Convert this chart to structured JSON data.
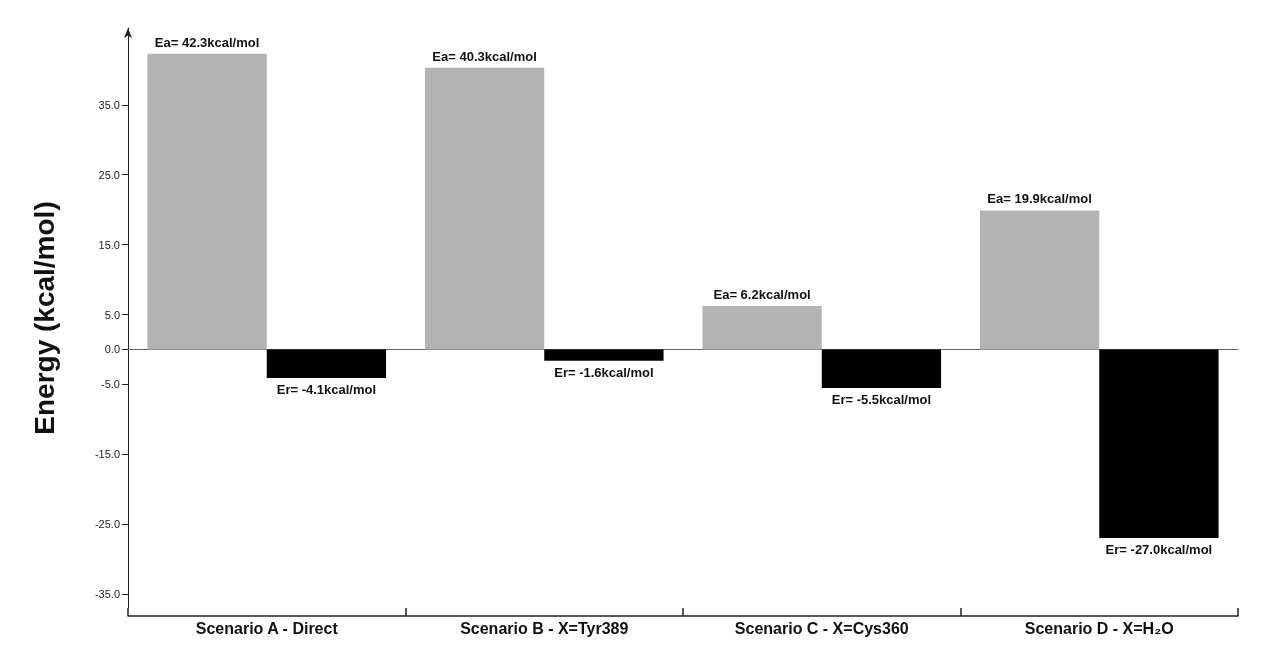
{
  "chart_data": {
    "type": "bar",
    "ylabel": "Energy (kcal/mol)",
    "categories": [
      "Scenario A - Direct",
      "Scenario B - X=Tyr389",
      "Scenario C - X=Cys360",
      "Scenario D - X=H₂O"
    ],
    "series": [
      {
        "color": "#b3b3b3",
        "values": [
          42.3,
          40.3,
          6.2,
          19.9
        ],
        "value_labels": [
          "Ea= 42.3kcal/mol",
          "Ea= 40.3kcal/mol",
          "Ea= 6.2kcal/mol",
          "Ea= 19.9kcal/mol"
        ]
      },
      {
        "color": "#000000",
        "values": [
          -4.1,
          -1.6,
          -5.5,
          -27.0
        ],
        "value_labels": [
          "Er= -4.1kcal/mol",
          "Er= -1.6kcal/mol",
          "Er= -5.5kcal/mol",
          "Er= -27.0kcal/mol"
        ]
      }
    ],
    "ylim": [
      -37,
      46
    ],
    "yticks": [
      {
        "value": 35,
        "label": "35.0"
      },
      {
        "value": 25,
        "label": "25.0"
      },
      {
        "value": 15,
        "label": "15.0"
      },
      {
        "value": 5,
        "label": "5.0"
      },
      {
        "value": 0,
        "label": "0.0"
      },
      {
        "value": -5,
        "label": "-5.0"
      },
      {
        "value": -15,
        "label": "-15.0"
      },
      {
        "value": -25,
        "label": "-25.0"
      },
      {
        "value": -35,
        "label": "-35.0"
      }
    ]
  }
}
